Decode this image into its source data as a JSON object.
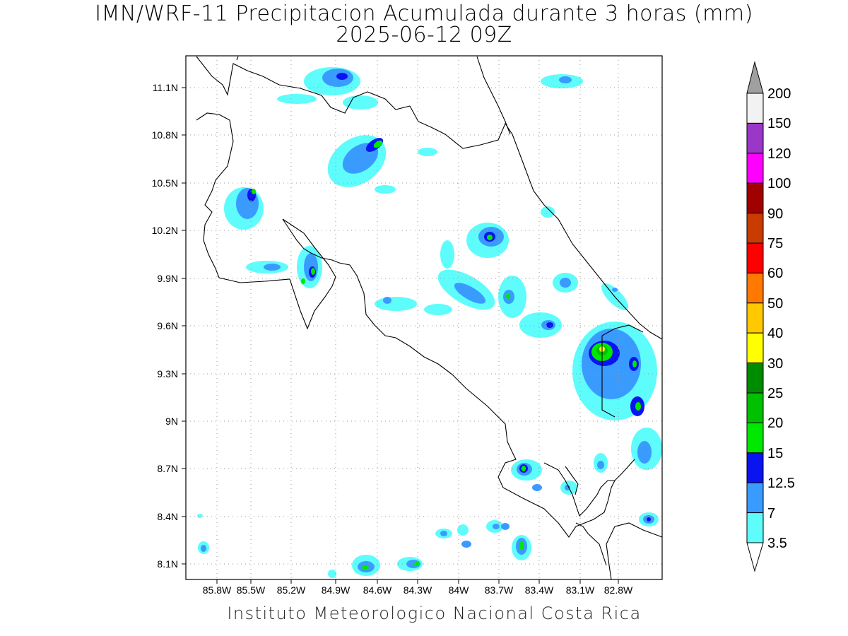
{
  "title": {
    "line1": "IMN/WRF-11 Precipitacion Acumulada durante 3 horas (mm)",
    "line2": "2025-06-12 09Z"
  },
  "footer": "Instituto Meteorologico Nacional Costa Rica",
  "map": {
    "region": "Costa Rica",
    "lon_range": [
      -86.1,
      -82.6
    ],
    "lat_range": [
      8.0,
      11.3
    ],
    "lon_ticks": [
      "85.8W",
      "85.5W",
      "85.2W",
      "84.9W",
      "84.6W",
      "84.3W",
      "84W",
      "83.7W",
      "83.4W",
      "83.1W",
      "82.8W"
    ],
    "lat_ticks": [
      "11.1N",
      "10.8N",
      "10.5N",
      "10.2N",
      "9.9N",
      "9.6N",
      "9.3N",
      "9N",
      "8.7N",
      "8.4N",
      "8.1N"
    ]
  },
  "colorbar": {
    "levels": [
      "3.5",
      "7",
      "12.5",
      "15",
      "20",
      "25",
      "30",
      "40",
      "50",
      "60",
      "75",
      "90",
      "100",
      "120",
      "150",
      "200"
    ],
    "colors": [
      "#5ffcfc",
      "#3a9bff",
      "#0a14f0",
      "#00e800",
      "#00c000",
      "#008c00",
      "#ffff00",
      "#ffc800",
      "#ff7800",
      "#ff0000",
      "#c83c00",
      "#a00000",
      "#ff00ff",
      "#9b37c8",
      "#f2f2f2"
    ]
  }
}
